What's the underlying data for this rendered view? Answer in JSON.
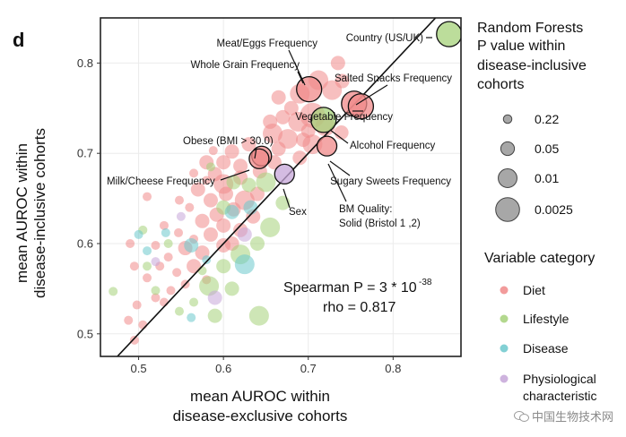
{
  "chart_data": {
    "type": "scatter",
    "panel_label": "d",
    "xlabel_lines": [
      "mean AUROC within",
      "disease-exclusive cohorts"
    ],
    "ylabel_lines": [
      "mean AUROC within",
      "disease-inclusive cohorts"
    ],
    "xlim": [
      0.455,
      0.88
    ],
    "ylim": [
      0.475,
      0.85
    ],
    "xticks": [
      0.5,
      0.6,
      0.7,
      0.8
    ],
    "yticks": [
      0.5,
      0.6,
      0.7,
      0.8
    ],
    "xtick_labels": [
      "0.5",
      "0.6",
      "0.7",
      "0.8"
    ],
    "ytick_labels": [
      "0.5",
      "0.6",
      "0.7",
      "0.8"
    ],
    "grid": true,
    "identity_line": true,
    "annotation": {
      "line1_prefix": "Spearman P = 3 * 10",
      "line1_exponent": "-38",
      "line2": "rho =  0.817"
    },
    "colors": {
      "Diet": "#f08a8a",
      "Lifestyle": "#a6d17a",
      "Disease": "#6cc8cc",
      "Physiological characteristic": "#c6a6d8",
      "panel_border": "#222222",
      "grid": "#ebebeb"
    },
    "size_legend": {
      "title_lines": [
        "Random Forests",
        "P value within",
        "disease-inclusive",
        "cohorts"
      ],
      "levels": [
        "0.22",
        "0.05",
        "0.01",
        "0.0025"
      ]
    },
    "color_legend": {
      "title": "Variable category",
      "entries": [
        {
          "label_lines": [
            "Diet"
          ],
          "category": "Diet"
        },
        {
          "label_lines": [
            "Lifestyle"
          ],
          "category": "Lifestyle"
        },
        {
          "label_lines": [
            "Disease"
          ],
          "category": "Disease"
        },
        {
          "label_lines": [
            "Physiological",
            "characteristic"
          ],
          "category": "Physiological characteristic"
        }
      ]
    },
    "labeled_points": [
      {
        "label": "Country (US/UK)",
        "x": 0.866,
        "y": 0.832,
        "category": "Lifestyle",
        "p_level": 3
      },
      {
        "label": "Meat/Eggs Frequency",
        "x": 0.701,
        "y": 0.771,
        "category": "Diet",
        "p_level": 3
      },
      {
        "label": "Whole Grain Frequency",
        "x": 0.701,
        "y": 0.771,
        "category": "Diet",
        "p_level": 3
      },
      {
        "label": "Salted Snacks Frequency",
        "x": 0.754,
        "y": 0.755,
        "category": "Diet",
        "p_level": 3
      },
      {
        "label": "Vegetable Frequency",
        "x": 0.762,
        "y": 0.752,
        "category": "Diet",
        "p_level": 3
      },
      {
        "label": "Alcohol Frequency",
        "x": 0.718,
        "y": 0.737,
        "category": "Lifestyle",
        "p_level": 3
      },
      {
        "label": "Obese (BMI > 30.0)",
        "x": 0.645,
        "y": 0.697,
        "category": "Diet",
        "p_level": 2
      },
      {
        "label": "Milk/Cheese Frequency",
        "x": 0.642,
        "y": 0.694,
        "category": "Diet",
        "p_level": 2
      },
      {
        "label": "Sugary Sweets Frequency",
        "x": 0.722,
        "y": 0.708,
        "category": "Diet",
        "p_level": 2
      },
      {
        "label": "Sex",
        "x": 0.672,
        "y": 0.677,
        "category": "Physiological characteristic",
        "p_level": 2
      },
      {
        "label": "BM Quality:",
        "label2": "Solid (Bristol 1 ,2)",
        "x": 0.722,
        "y": 0.708,
        "category": "Physiological characteristic",
        "p_level": 2
      }
    ],
    "points": [
      {
        "x": 0.735,
        "y": 0.8,
        "category": "Diet",
        "p_level": 1
      },
      {
        "x": 0.712,
        "y": 0.781,
        "category": "Diet",
        "p_level": 2
      },
      {
        "x": 0.69,
        "y": 0.766,
        "category": "Diet",
        "p_level": 2
      },
      {
        "x": 0.665,
        "y": 0.762,
        "category": "Diet",
        "p_level": 1
      },
      {
        "x": 0.728,
        "y": 0.77,
        "category": "Diet",
        "p_level": 2
      },
      {
        "x": 0.74,
        "y": 0.78,
        "category": "Diet",
        "p_level": 1
      },
      {
        "x": 0.705,
        "y": 0.742,
        "category": "Diet",
        "p_level": 3
      },
      {
        "x": 0.688,
        "y": 0.735,
        "category": "Diet",
        "p_level": 2
      },
      {
        "x": 0.72,
        "y": 0.73,
        "category": "Diet",
        "p_level": 2
      },
      {
        "x": 0.67,
        "y": 0.74,
        "category": "Diet",
        "p_level": 1
      },
      {
        "x": 0.658,
        "y": 0.722,
        "category": "Diet",
        "p_level": 2
      },
      {
        "x": 0.676,
        "y": 0.716,
        "category": "Diet",
        "p_level": 2
      },
      {
        "x": 0.694,
        "y": 0.715,
        "category": "Diet",
        "p_level": 1
      },
      {
        "x": 0.739,
        "y": 0.723,
        "category": "Diet",
        "p_level": 1
      },
      {
        "x": 0.705,
        "y": 0.71,
        "category": "Diet",
        "p_level": 2
      },
      {
        "x": 0.665,
        "y": 0.705,
        "category": "Diet",
        "p_level": 1
      },
      {
        "x": 0.63,
        "y": 0.71,
        "category": "Diet",
        "p_level": 1
      },
      {
        "x": 0.61,
        "y": 0.702,
        "category": "Diet",
        "p_level": 1
      },
      {
        "x": 0.62,
        "y": 0.686,
        "category": "Diet",
        "p_level": 1
      },
      {
        "x": 0.58,
        "y": 0.69,
        "category": "Diet",
        "p_level": 1
      },
      {
        "x": 0.588,
        "y": 0.703,
        "category": "Diet",
        "p_level": 0
      },
      {
        "x": 0.6,
        "y": 0.69,
        "category": "Diet",
        "p_level": 1
      },
      {
        "x": 0.643,
        "y": 0.68,
        "category": "Diet",
        "p_level": 1
      },
      {
        "x": 0.59,
        "y": 0.677,
        "category": "Diet",
        "p_level": 1
      },
      {
        "x": 0.6,
        "y": 0.666,
        "category": "Diet",
        "p_level": 2
      },
      {
        "x": 0.62,
        "y": 0.673,
        "category": "Diet",
        "p_level": 1
      },
      {
        "x": 0.58,
        "y": 0.67,
        "category": "Diet",
        "p_level": 0
      },
      {
        "x": 0.565,
        "y": 0.678,
        "category": "Diet",
        "p_level": 0
      },
      {
        "x": 0.57,
        "y": 0.66,
        "category": "Diet",
        "p_level": 1
      },
      {
        "x": 0.585,
        "y": 0.648,
        "category": "Diet",
        "p_level": 1
      },
      {
        "x": 0.603,
        "y": 0.655,
        "category": "Diet",
        "p_level": 1
      },
      {
        "x": 0.625,
        "y": 0.648,
        "category": "Diet",
        "p_level": 2
      },
      {
        "x": 0.64,
        "y": 0.655,
        "category": "Diet",
        "p_level": 1
      },
      {
        "x": 0.612,
        "y": 0.638,
        "category": "Diet",
        "p_level": 1
      },
      {
        "x": 0.592,
        "y": 0.632,
        "category": "Diet",
        "p_level": 1
      },
      {
        "x": 0.56,
        "y": 0.64,
        "category": "Diet",
        "p_level": 0
      },
      {
        "x": 0.548,
        "y": 0.648,
        "category": "Diet",
        "p_level": 0
      },
      {
        "x": 0.575,
        "y": 0.625,
        "category": "Diet",
        "p_level": 1
      },
      {
        "x": 0.6,
        "y": 0.62,
        "category": "Diet",
        "p_level": 1
      },
      {
        "x": 0.62,
        "y": 0.615,
        "category": "Diet",
        "p_level": 1
      },
      {
        "x": 0.585,
        "y": 0.61,
        "category": "Diet",
        "p_level": 1
      },
      {
        "x": 0.565,
        "y": 0.605,
        "category": "Diet",
        "p_level": 0
      },
      {
        "x": 0.547,
        "y": 0.612,
        "category": "Diet",
        "p_level": 0
      },
      {
        "x": 0.53,
        "y": 0.62,
        "category": "Diet",
        "p_level": 0
      },
      {
        "x": 0.555,
        "y": 0.595,
        "category": "Diet",
        "p_level": 1
      },
      {
        "x": 0.575,
        "y": 0.59,
        "category": "Diet",
        "p_level": 1
      },
      {
        "x": 0.6,
        "y": 0.598,
        "category": "Diet",
        "p_level": 1
      },
      {
        "x": 0.535,
        "y": 0.585,
        "category": "Diet",
        "p_level": 0
      },
      {
        "x": 0.52,
        "y": 0.598,
        "category": "Diet",
        "p_level": 0
      },
      {
        "x": 0.565,
        "y": 0.575,
        "category": "Diet",
        "p_level": 1
      },
      {
        "x": 0.545,
        "y": 0.568,
        "category": "Diet",
        "p_level": 0
      },
      {
        "x": 0.525,
        "y": 0.575,
        "category": "Diet",
        "p_level": 0
      },
      {
        "x": 0.51,
        "y": 0.562,
        "category": "Diet",
        "p_level": 0
      },
      {
        "x": 0.555,
        "y": 0.555,
        "category": "Diet",
        "p_level": 0
      },
      {
        "x": 0.538,
        "y": 0.548,
        "category": "Diet",
        "p_level": 0
      },
      {
        "x": 0.52,
        "y": 0.54,
        "category": "Diet",
        "p_level": 0
      },
      {
        "x": 0.49,
        "y": 0.6,
        "category": "Diet",
        "p_level": 0
      },
      {
        "x": 0.495,
        "y": 0.575,
        "category": "Diet",
        "p_level": 0
      },
      {
        "x": 0.498,
        "y": 0.532,
        "category": "Diet",
        "p_level": 0
      },
      {
        "x": 0.488,
        "y": 0.515,
        "category": "Diet",
        "p_level": 0
      },
      {
        "x": 0.505,
        "y": 0.51,
        "category": "Diet",
        "p_level": 0
      },
      {
        "x": 0.495,
        "y": 0.493,
        "category": "Diet",
        "p_level": 0
      },
      {
        "x": 0.51,
        "y": 0.652,
        "category": "Diet",
        "p_level": 0
      },
      {
        "x": 0.53,
        "y": 0.535,
        "category": "Diet",
        "p_level": 0
      },
      {
        "x": 0.61,
        "y": 0.6,
        "category": "Diet",
        "p_level": 1
      },
      {
        "x": 0.58,
        "y": 0.56,
        "category": "Diet",
        "p_level": 0
      },
      {
        "x": 0.635,
        "y": 0.63,
        "category": "Diet",
        "p_level": 1
      },
      {
        "x": 0.66,
        "y": 0.69,
        "category": "Diet",
        "p_level": 1
      },
      {
        "x": 0.69,
        "y": 0.695,
        "category": "Diet",
        "p_level": 1
      },
      {
        "x": 0.7,
        "y": 0.725,
        "category": "Diet",
        "p_level": 1
      },
      {
        "x": 0.68,
        "y": 0.75,
        "category": "Diet",
        "p_level": 1
      },
      {
        "x": 0.655,
        "y": 0.735,
        "category": "Diet",
        "p_level": 1
      },
      {
        "x": 0.65,
        "y": 0.668,
        "category": "Lifestyle",
        "p_level": 2
      },
      {
        "x": 0.63,
        "y": 0.665,
        "category": "Lifestyle",
        "p_level": 1
      },
      {
        "x": 0.612,
        "y": 0.668,
        "category": "Lifestyle",
        "p_level": 1
      },
      {
        "x": 0.655,
        "y": 0.618,
        "category": "Lifestyle",
        "p_level": 2
      },
      {
        "x": 0.64,
        "y": 0.6,
        "category": "Lifestyle",
        "p_level": 1
      },
      {
        "x": 0.62,
        "y": 0.588,
        "category": "Lifestyle",
        "p_level": 2
      },
      {
        "x": 0.6,
        "y": 0.575,
        "category": "Lifestyle",
        "p_level": 1
      },
      {
        "x": 0.583,
        "y": 0.553,
        "category": "Lifestyle",
        "p_level": 2
      },
      {
        "x": 0.61,
        "y": 0.55,
        "category": "Lifestyle",
        "p_level": 1
      },
      {
        "x": 0.642,
        "y": 0.52,
        "category": "Lifestyle",
        "p_level": 2
      },
      {
        "x": 0.59,
        "y": 0.52,
        "category": "Lifestyle",
        "p_level": 1
      },
      {
        "x": 0.565,
        "y": 0.535,
        "category": "Lifestyle",
        "p_level": 0
      },
      {
        "x": 0.548,
        "y": 0.525,
        "category": "Lifestyle",
        "p_level": 0
      },
      {
        "x": 0.52,
        "y": 0.548,
        "category": "Lifestyle",
        "p_level": 0
      },
      {
        "x": 0.51,
        "y": 0.575,
        "category": "Lifestyle",
        "p_level": 0
      },
      {
        "x": 0.505,
        "y": 0.615,
        "category": "Lifestyle",
        "p_level": 0
      },
      {
        "x": 0.535,
        "y": 0.6,
        "category": "Lifestyle",
        "p_level": 0
      },
      {
        "x": 0.575,
        "y": 0.57,
        "category": "Lifestyle",
        "p_level": 0
      },
      {
        "x": 0.47,
        "y": 0.547,
        "category": "Lifestyle",
        "p_level": 0
      },
      {
        "x": 0.585,
        "y": 0.685,
        "category": "Lifestyle",
        "p_level": 0
      },
      {
        "x": 0.67,
        "y": 0.645,
        "category": "Lifestyle",
        "p_level": 1
      },
      {
        "x": 0.6,
        "y": 0.64,
        "category": "Lifestyle",
        "p_level": 1
      },
      {
        "x": 0.61,
        "y": 0.635,
        "category": "Disease",
        "p_level": 1
      },
      {
        "x": 0.625,
        "y": 0.577,
        "category": "Disease",
        "p_level": 2
      },
      {
        "x": 0.562,
        "y": 0.598,
        "category": "Disease",
        "p_level": 1
      },
      {
        "x": 0.58,
        "y": 0.582,
        "category": "Disease",
        "p_level": 0
      },
      {
        "x": 0.5,
        "y": 0.61,
        "category": "Disease",
        "p_level": 0
      },
      {
        "x": 0.532,
        "y": 0.612,
        "category": "Disease",
        "p_level": 0
      },
      {
        "x": 0.562,
        "y": 0.518,
        "category": "Disease",
        "p_level": 0
      },
      {
        "x": 0.51,
        "y": 0.592,
        "category": "Disease",
        "p_level": 0
      },
      {
        "x": 0.632,
        "y": 0.64,
        "category": "Disease",
        "p_level": 1
      },
      {
        "x": 0.55,
        "y": 0.63,
        "category": "Physiological characteristic",
        "p_level": 0
      },
      {
        "x": 0.59,
        "y": 0.54,
        "category": "Physiological characteristic",
        "p_level": 1
      },
      {
        "x": 0.625,
        "y": 0.61,
        "category": "Physiological characteristic",
        "p_level": 1
      },
      {
        "x": 0.52,
        "y": 0.58,
        "category": "Physiological characteristic",
        "p_level": 0
      }
    ]
  },
  "watermark": {
    "text": "中国生物技术网"
  }
}
